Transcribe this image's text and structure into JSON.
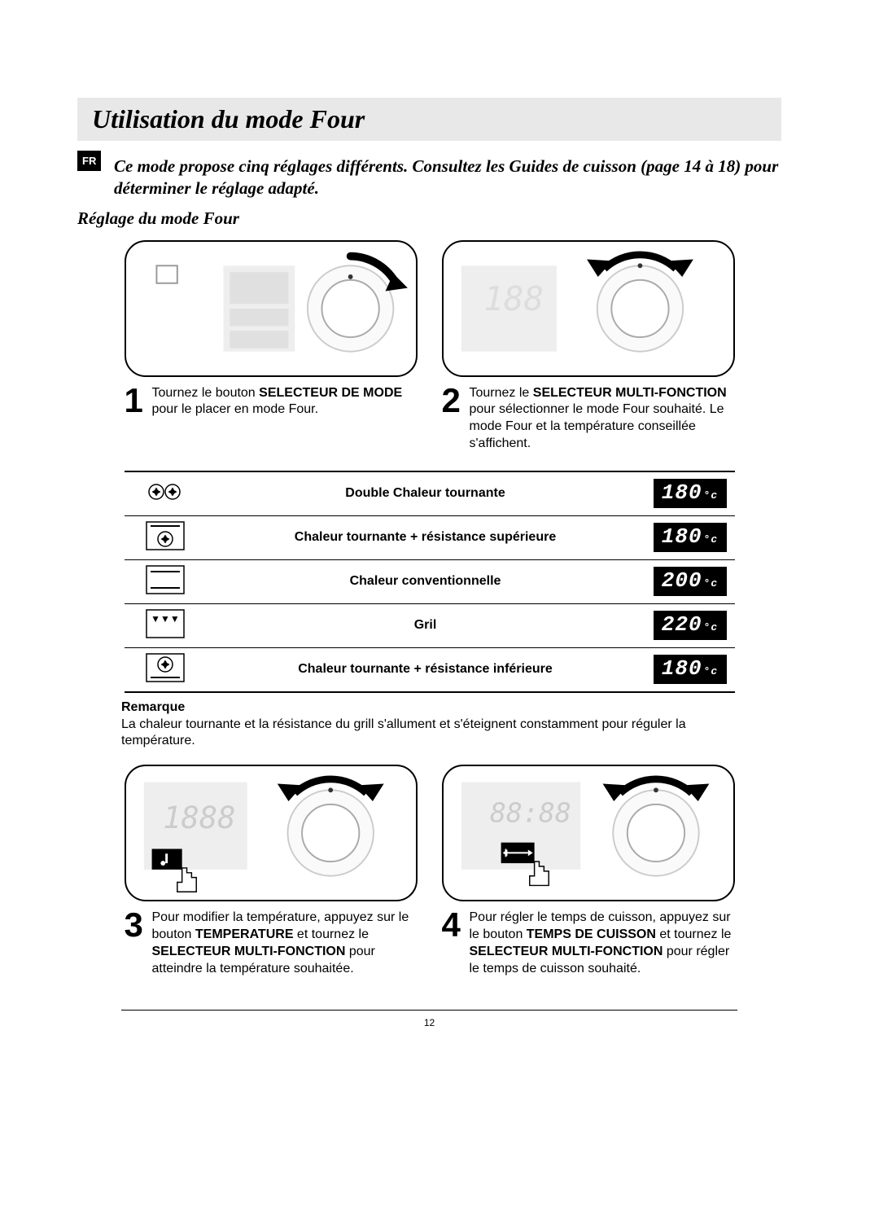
{
  "lang_tag": "FR",
  "title": "Utilisation du mode Four",
  "intro": "Ce mode propose cinq réglages différents. Consultez les Guides de cuisson (page 14 à 18) pour déterminer le réglage adapté.",
  "subheading": "Réglage du mode Four",
  "steps": {
    "s1": {
      "num": "1",
      "pre": "Tournez le bouton ",
      "bold": "SELECTEUR DE MODE",
      "post": " pour le placer en mode Four."
    },
    "s2": {
      "num": "2",
      "pre": "Tournez le ",
      "bold": "SELECTEUR MULTI-FONCTION",
      "post": " pour sélectionner le mode Four souhaité. Le mode Four et la température conseillée s'affichent."
    },
    "s3": {
      "num": "3",
      "pre": "Pour modifier la température, appuyez sur le bouton ",
      "bold1": "TEMPERATURE",
      "mid": " et tournez le ",
      "bold2": "SELECTEUR MULTI-FONCTION",
      "post": " pour atteindre la température souhaitée."
    },
    "s4": {
      "num": "4",
      "pre": "Pour régler le temps de cuisson, appuyez sur le bouton ",
      "bold1": "TEMPS DE CUISSON",
      "mid": " et tournez le ",
      "bold2": "SELECTEUR MULTI-FONCTION",
      "post": " pour régler le temps de cuisson souhaité."
    }
  },
  "modes": [
    {
      "icon": "double-fan",
      "label": "Double Chaleur tournante",
      "temp": "180"
    },
    {
      "icon": "fan-top",
      "label": "Chaleur tournante + résistance supérieure",
      "temp": "180"
    },
    {
      "icon": "conv",
      "label": "Chaleur conventionnelle",
      "temp": "200"
    },
    {
      "icon": "grill",
      "label": "Gril",
      "temp": "220"
    },
    {
      "icon": "fan-bottom",
      "label": "Chaleur tournante + résistance inférieure",
      "temp": "180"
    }
  ],
  "note": {
    "title": "Remarque",
    "body": "La chaleur tournante et la résistance du grill s'allument et s'éteignent constamment pour réguler la température."
  },
  "page_number": "12",
  "colors": {
    "title_bg": "#e8e8e8",
    "text": "#000000",
    "temp_bg": "#000000",
    "temp_fg": "#ffffff"
  }
}
